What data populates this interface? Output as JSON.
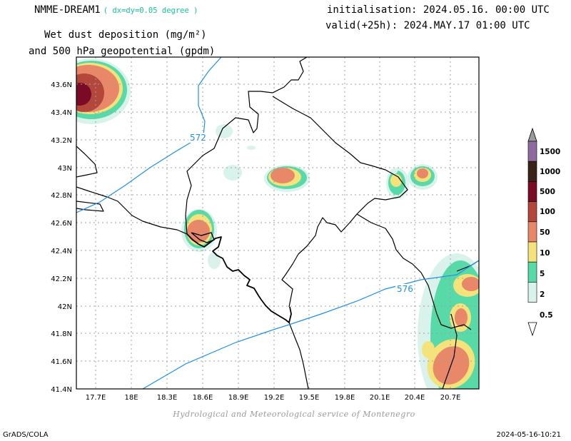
{
  "header": {
    "model": "NMME-DREAM1",
    "resolution": "( dx=dy=0.05 degree )",
    "variable_line1": "Wet dust deposition (mg/m²)",
    "variable_line2": "and 500 hPa geopotential (gpdm)",
    "initialisation": "initialisation: 2024.05.16. 00:00 UTC",
    "valid": "valid(+25h): 2024.MAY.17 01:00 UTC"
  },
  "map": {
    "lat_ticks": [
      "43.6N",
      "43.4N",
      "43.2N",
      "43N",
      "42.8N",
      "42.6N",
      "42.4N",
      "42.2N",
      "42N",
      "41.8N",
      "41.6N",
      "41.4N"
    ],
    "lon_ticks": [
      "17.7E",
      "18E",
      "18.3E",
      "18.6E",
      "18.9E",
      "19.2E",
      "19.5E",
      "19.8E",
      "20.1E",
      "20.4E",
      "20.7E"
    ],
    "lat_range": [
      41.4,
      43.8
    ],
    "lon_range": [
      17.5,
      21.0
    ],
    "contour_labels": [
      "572",
      "576"
    ],
    "contour_color": "#1e90e8",
    "grid": true
  },
  "legend": {
    "levels": [
      "1500",
      "1000",
      "500",
      "100",
      "50",
      "10",
      "5",
      "2",
      "0.5"
    ],
    "colors": [
      "#9a9a9a",
      "#8f6aa0",
      "#3a2417",
      "#7a0a25",
      "#b3473c",
      "#e88868",
      "#f4e27a",
      "#58d9a8",
      "#d9f2ec"
    ]
  },
  "credit": "Hydrological and Meteorological service of Montenegro",
  "footer": {
    "left": "GrADS/COLA",
    "right": "2024-05-16-10:21"
  }
}
